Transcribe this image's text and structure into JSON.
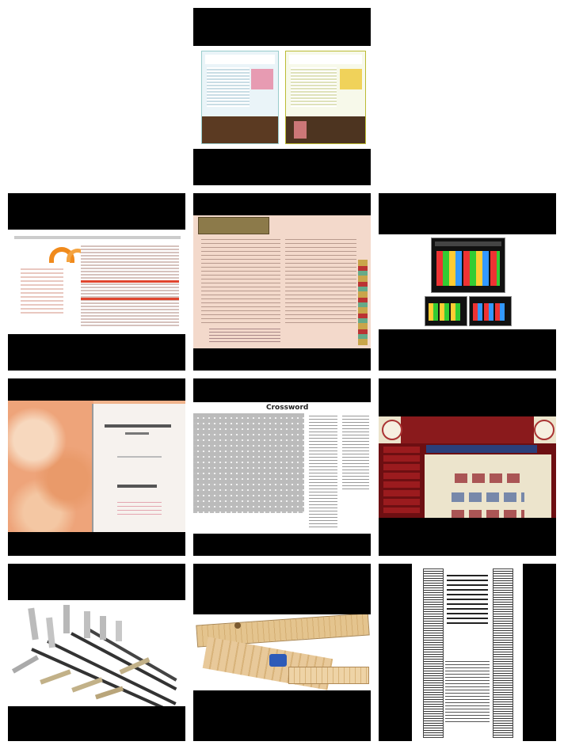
{
  "grid": {
    "tiles": [
      {
        "name": "newsletter-templates-thumbnail"
      },
      {
        "name": "orange-brochure-document-thumbnail"
      },
      {
        "name": "restaurant-menu-thumbnail"
      },
      {
        "name": "dark-website-screens-thumbnail"
      },
      {
        "name": "marble-cover-book-thumbnail"
      },
      {
        "name": "crossword-puzzle-thumbnail"
      },
      {
        "name": "red-entertainment-website-thumbnail"
      },
      {
        "name": "bolts-and-rods-thumbnail"
      },
      {
        "name": "wooden-pencil-box-thumbnail"
      },
      {
        "name": "slide-rule-thumbnail"
      }
    ]
  },
  "labels": {
    "crossword_title": "Crossword"
  },
  "colors": {
    "letterbox": "#000000",
    "page_background": "#ffffff",
    "menu_background": "#f3d9cb",
    "website_red": "#6d0f12",
    "website_cream": "#ece4cc"
  }
}
